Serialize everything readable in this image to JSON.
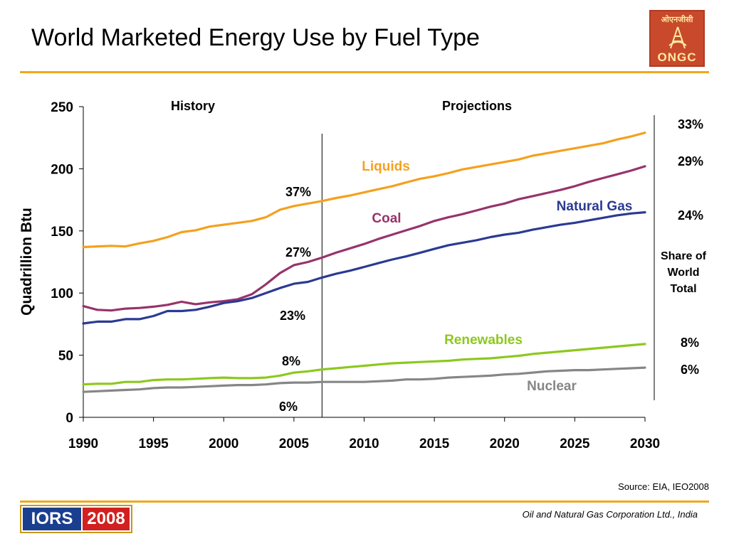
{
  "slide": {
    "title": "World Marketed Energy Use by Fuel Type",
    "accent_color": "#f0a81c",
    "logo_hindi": "ओएनजीसी",
    "logo_text": "ONGC",
    "source": "Source: EIA, IEO2008",
    "footer_badge_left": "IORS",
    "footer_badge_right": "2008",
    "footer_company": "Oil and Natural Gas Corporation Ltd., India"
  },
  "chart_data": {
    "type": "line",
    "ylabel": "Quadrillion Btu",
    "xlabel": "",
    "xlim": [
      1990,
      2030
    ],
    "ylim": [
      0,
      250
    ],
    "xticks": [
      1990,
      1995,
      2000,
      2005,
      2010,
      2015,
      2020,
      2025,
      2030
    ],
    "yticks": [
      0,
      50,
      100,
      150,
      200,
      250
    ],
    "divider_year": 2007,
    "period_labels": {
      "history": "History",
      "projections": "Projections"
    },
    "share_heading": "Share of World Total",
    "grid": false,
    "x": [
      1990,
      1991,
      1992,
      1993,
      1994,
      1995,
      1996,
      1997,
      1998,
      1999,
      2000,
      2001,
      2002,
      2003,
      2004,
      2005,
      2006,
      2007,
      2008,
      2009,
      2010,
      2011,
      2012,
      2013,
      2014,
      2015,
      2016,
      2017,
      2018,
      2019,
      2020,
      2021,
      2022,
      2023,
      2024,
      2025,
      2026,
      2027,
      2028,
      2029,
      2030
    ],
    "series": [
      {
        "name": "Liquids",
        "color": "#f5a01e",
        "share_2005": "37%",
        "share_2030": "33%",
        "values": [
          137,
          137.5,
          138,
          137.5,
          140,
          142,
          145,
          149,
          150.5,
          153.5,
          155,
          156.5,
          158,
          161,
          167,
          170,
          172,
          174,
          176.5,
          178.5,
          181,
          183.5,
          186,
          189,
          192,
          194,
          196.5,
          199.5,
          201.5,
          203.5,
          205.5,
          207.5,
          210.5,
          212.5,
          214.5,
          216.5,
          218.5,
          220.5,
          223.5,
          226,
          229
        ]
      },
      {
        "name": "Coal",
        "color": "#97336a",
        "share_2005": "27%",
        "share_2030": "29%",
        "values": [
          89.5,
          86.5,
          86,
          87.5,
          88,
          89,
          90.5,
          93,
          91,
          92.5,
          93.5,
          95,
          99,
          107,
          116,
          122.5,
          125,
          128.5,
          132.5,
          136,
          139.5,
          143.5,
          147,
          150.5,
          154,
          158,
          161,
          163.5,
          166.5,
          169.5,
          172,
          175.5,
          178,
          180.5,
          183,
          186,
          189.5,
          192.5,
          195.5,
          198.5,
          202
        ]
      },
      {
        "name": "Natural Gas",
        "color": "#2b3a93",
        "share_2005": "23%",
        "share_2030": "24%",
        "values": [
          75.5,
          77,
          77,
          79,
          79,
          81.5,
          85.5,
          85.5,
          86.5,
          89,
          92,
          93.5,
          96,
          100,
          104,
          107.5,
          109,
          112.5,
          115.5,
          118,
          121,
          124,
          127,
          129.5,
          132.5,
          135.5,
          138.5,
          140.5,
          142.5,
          145,
          147,
          148.5,
          151,
          153,
          155,
          156.5,
          158.5,
          160.5,
          162.5,
          164,
          165
        ]
      },
      {
        "name": "Renewables",
        "color": "#8dc81e",
        "share_2005": "8%",
        "share_2030": "8%",
        "values": [
          26.5,
          27,
          27,
          28.5,
          28.5,
          30,
          30.5,
          30.5,
          31,
          31.5,
          32,
          31.5,
          31.5,
          32,
          33.5,
          36,
          37,
          38.5,
          39.5,
          40.5,
          41.5,
          42.5,
          43.5,
          44,
          44.5,
          45,
          45.5,
          46.5,
          47,
          47.5,
          48.5,
          49.5,
          51,
          52,
          53,
          54,
          55,
          56,
          57,
          58,
          59
        ]
      },
      {
        "name": "Nuclear",
        "color": "#868686",
        "share_2005": "6%",
        "share_2030": "6%",
        "values": [
          20.5,
          21,
          21.5,
          22,
          22.5,
          23.5,
          24,
          24,
          24.5,
          25,
          25.5,
          26,
          26,
          26.5,
          27.5,
          28,
          28,
          28.5,
          28.5,
          28.5,
          28.5,
          29,
          29.5,
          30.5,
          30.5,
          31,
          32,
          32.5,
          33,
          33.5,
          34.5,
          35,
          36,
          37,
          37.5,
          38,
          38,
          38.5,
          39,
          39.5,
          40
        ]
      }
    ]
  }
}
